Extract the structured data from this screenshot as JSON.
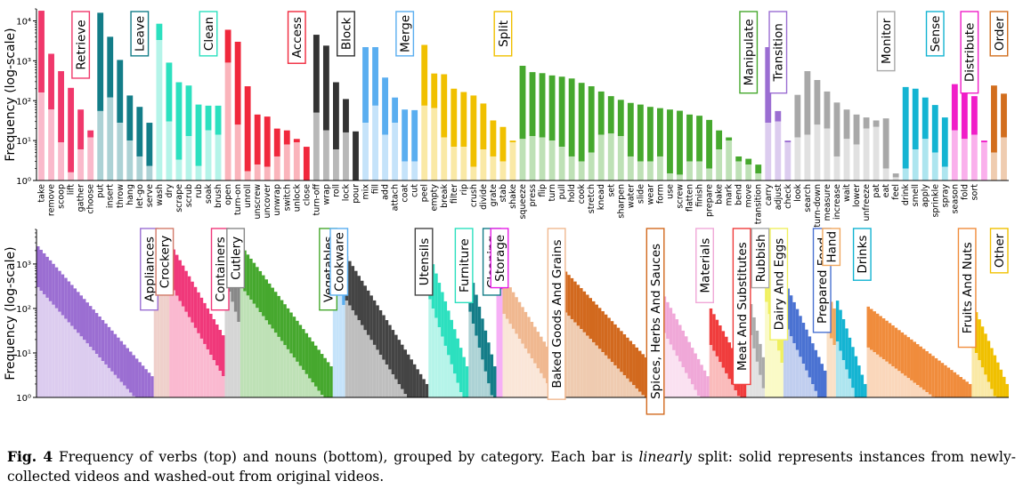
{
  "caption": {
    "label": "Fig. 4",
    "text1": "Frequency of verbs (top) and nouns (bottom), grouped by category. Each bar is",
    "emph": "linearly",
    "text2": "split: solid represents instances from newly-collected videos and washed-out from original videos."
  },
  "chart_data": [
    {
      "type": "bar",
      "stacked": true,
      "scale": "log",
      "ylabel": "Frequency (log-scale)",
      "ylim": [
        1,
        20000
      ],
      "yticks": [
        1,
        10,
        100,
        1000,
        10000
      ],
      "ytick_labels": [
        "10⁰",
        "10¹",
        "10²",
        "10³",
        "10⁴"
      ],
      "grid": false,
      "legend": "none",
      "categories": [
        {
          "name": "Retrieve",
          "color": "#f0386b",
          "verbs": [
            {
              "label": "take",
              "total": 18000,
              "original": 160
            },
            {
              "label": "remove",
              "total": 1500,
              "original": 60
            },
            {
              "label": "scoop",
              "total": 550,
              "original": 9
            },
            {
              "label": "lift",
              "total": 210,
              "original": 1.6
            },
            {
              "label": "gather",
              "total": 60,
              "original": 6
            },
            {
              "label": "choose",
              "total": 18,
              "original": 12
            }
          ]
        },
        {
          "name": "Leave",
          "color": "#137d88",
          "verbs": [
            {
              "label": "put",
              "total": 16000,
              "original": 55
            },
            {
              "label": "insert",
              "total": 4000,
              "original": 120
            },
            {
              "label": "throw",
              "total": 1050,
              "original": 28
            },
            {
              "label": "hang",
              "total": 135,
              "original": 10
            },
            {
              "label": "let-go",
              "total": 70,
              "original": 4
            },
            {
              "label": "serve",
              "total": 28,
              "original": 2.3
            }
          ]
        },
        {
          "name": "Clean",
          "color": "#2ce0bf",
          "verbs": [
            {
              "label": "wash",
              "total": 8500,
              "original": 3300
            },
            {
              "label": "dry",
              "total": 900,
              "original": 30
            },
            {
              "label": "scrape",
              "total": 290,
              "original": 3.3
            },
            {
              "label": "scrub",
              "total": 240,
              "original": 13
            },
            {
              "label": "rub",
              "total": 80,
              "original": 2.3
            },
            {
              "label": "soak",
              "total": 75,
              "original": 18
            },
            {
              "label": "brush",
              "total": 75,
              "original": 14
            }
          ]
        },
        {
          "name": "Access",
          "color": "#f0283c",
          "verbs": [
            {
              "label": "open",
              "total": 6000,
              "original": 900
            },
            {
              "label": "turn-on",
              "total": 3000,
              "original": 25
            },
            {
              "label": "unroll",
              "total": 230,
              "original": 1.7
            },
            {
              "label": "unscrew",
              "total": 45,
              "original": 2.5
            },
            {
              "label": "uncover",
              "total": 40,
              "original": 2.2
            },
            {
              "label": "unwrap",
              "total": 20,
              "original": 4
            },
            {
              "label": "switch",
              "total": 18,
              "original": 8
            },
            {
              "label": "unlock",
              "total": 11,
              "original": 9
            },
            {
              "label": "close",
              "total": 7,
              "original": 1
            }
          ]
        },
        {
          "name": "Block",
          "color": "#333333",
          "verbs": [
            {
              "label": "turn-off",
              "total": 4500,
              "original": 50
            },
            {
              "label": "wrap",
              "total": 2400,
              "original": 18
            },
            {
              "label": "roll",
              "total": 290,
              "original": 6
            },
            {
              "label": "lock",
              "total": 110,
              "original": 16
            },
            {
              "label": "pour",
              "total": 17,
              "original": 1
            }
          ]
        },
        {
          "name": "Merge",
          "color": "#5aaef0",
          "verbs": [
            {
              "label": "mix",
              "total": 2200,
              "original": 28
            },
            {
              "label": "fill",
              "total": 2200,
              "original": 75
            },
            {
              "label": "add",
              "total": 380,
              "original": 14
            },
            {
              "label": "attach",
              "total": 120,
              "original": 28
            },
            {
              "label": "coat",
              "total": 60,
              "original": 3
            },
            {
              "label": "cut",
              "total": 58,
              "original": 3
            }
          ]
        },
        {
          "name": "Split",
          "color": "#f0c000",
          "verbs": [
            {
              "label": "peel",
              "total": 2500,
              "original": 75
            },
            {
              "label": "empty",
              "total": 480,
              "original": 65
            },
            {
              "label": "break",
              "total": 460,
              "original": 12
            },
            {
              "label": "filter",
              "total": 200,
              "original": 7
            },
            {
              "label": "rip",
              "total": 165,
              "original": 7
            },
            {
              "label": "crush",
              "total": 135,
              "original": 2.2
            },
            {
              "label": "divide",
              "total": 85,
              "original": 6
            },
            {
              "label": "grate",
              "total": 32,
              "original": 4
            },
            {
              "label": "stab",
              "total": 22,
              "original": 3
            },
            {
              "label": "shake",
              "total": 10,
              "original": 9
            }
          ]
        },
        {
          "name": "Manipulate",
          "color": "#46a82e",
          "verbs": [
            {
              "label": "squeeze",
              "total": 750,
              "original": 11
            },
            {
              "label": "press",
              "total": 520,
              "original": 13
            },
            {
              "label": "flip",
              "total": 490,
              "original": 12
            },
            {
              "label": "turn",
              "total": 430,
              "original": 10
            },
            {
              "label": "pull",
              "total": 400,
              "original": 7
            },
            {
              "label": "hold",
              "total": 360,
              "original": 4
            },
            {
              "label": "cook",
              "total": 280,
              "original": 3
            },
            {
              "label": "stretch",
              "total": 230,
              "original": 5
            },
            {
              "label": "knead",
              "total": 170,
              "original": 14
            },
            {
              "label": "set",
              "total": 130,
              "original": 15
            },
            {
              "label": "sharpen",
              "total": 105,
              "original": 13
            },
            {
              "label": "water",
              "total": 88,
              "original": 4
            },
            {
              "label": "slide",
              "total": 80,
              "original": 3
            },
            {
              "label": "wear",
              "total": 70,
              "original": 3
            },
            {
              "label": "form",
              "total": 65,
              "original": 4
            },
            {
              "label": "use",
              "total": 60,
              "original": 1.5
            },
            {
              "label": "screw",
              "total": 56,
              "original": 1.4
            },
            {
              "label": "flatten",
              "total": 45,
              "original": 3
            },
            {
              "label": "finish",
              "total": 42,
              "original": 3
            },
            {
              "label": "prepare",
              "total": 33,
              "original": 2
            },
            {
              "label": "bake",
              "total": 18,
              "original": 6
            },
            {
              "label": "mark",
              "total": 12,
              "original": 10
            },
            {
              "label": "bend",
              "total": 4,
              "original": 3
            },
            {
              "label": "move",
              "total": 3.5,
              "original": 2.5
            },
            {
              "label": "transition",
              "total": 2.5,
              "original": 1.5
            }
          ]
        },
        {
          "name": "Transition",
          "color": "#9b6ed2",
          "verbs": [
            {
              "label": "carry",
              "total": 2200,
              "original": 28
            },
            {
              "label": "adjust",
              "total": 55,
              "original": 30
            },
            {
              "label": "check",
              "total": 10,
              "original": 9
            }
          ]
        },
        {
          "name": "Monitor",
          "color": "#a8a8a8",
          "verbs": [
            {
              "label": "look",
              "total": 140,
              "original": 12
            },
            {
              "label": "search",
              "total": 550,
              "original": 14
            },
            {
              "label": "turn-down",
              "total": 330,
              "original": 25
            },
            {
              "label": "measure",
              "total": 170,
              "original": 20
            },
            {
              "label": "increase",
              "total": 90,
              "original": 4
            },
            {
              "label": "wait",
              "total": 60,
              "original": 11
            },
            {
              "label": "lower",
              "total": 45,
              "original": 8
            },
            {
              "label": "unfreeze",
              "total": 38,
              "original": 20
            },
            {
              "label": "pat",
              "total": 32,
              "original": 22
            },
            {
              "label": "eat",
              "total": 36,
              "original": 2
            },
            {
              "label": "feel",
              "total": 1.5,
              "original": 1.2
            }
          ]
        },
        {
          "name": "Sense",
          "color": "#14b4d2",
          "verbs": [
            {
              "label": "drink",
              "total": 220,
              "original": 2
            },
            {
              "label": "smell",
              "total": 200,
              "original": 6
            },
            {
              "label": "apply",
              "total": 120,
              "original": 11
            },
            {
              "label": "sprinkle",
              "total": 78,
              "original": 5
            },
            {
              "label": "spray",
              "total": 38,
              "original": 2.2
            }
          ]
        },
        {
          "name": "Distribute",
          "color": "#f01ec8",
          "verbs": [
            {
              "label": "season",
              "total": 260,
              "original": 18
            },
            {
              "label": "fold",
              "total": 160,
              "original": 11
            },
            {
              "label": "sort",
              "total": 130,
              "original": 14
            },
            {
              "label": "",
              "total": 10,
              "original": 9
            }
          ]
        },
        {
          "name": "Order",
          "color": "#d26e1e",
          "verbs": [
            {
              "label": "",
              "total": 240,
              "original": 5
            },
            {
              "label": "",
              "total": 150,
              "original": 12
            }
          ]
        }
      ]
    },
    {
      "type": "bar",
      "stacked": true,
      "scale": "log",
      "ylabel": "Frequency (log-scale)",
      "ylim": [
        1,
        6000
      ],
      "yticks": [
        1,
        10,
        100,
        1000
      ],
      "ytick_labels": [
        "10⁰",
        "10¹",
        "10²",
        "10³"
      ],
      "grid": false,
      "legend": "none",
      "categories": [
        {
          "name": "Appliances",
          "color": "#9b6ed2",
          "count": 38,
          "start": 2500,
          "end": 3,
          "orig_ratio": 0.12
        },
        {
          "name": "Crockery",
          "color": "#d27a6a",
          "count": 5,
          "start": 3000,
          "end": 1500,
          "orig_ratio": 0.15
        },
        {
          "name": "Containers",
          "color": "#f0387a",
          "count": 18,
          "start": 2800,
          "end": 25,
          "orig_ratio": 0.12
        },
        {
          "name": "Cutlery",
          "color": "#888888",
          "count": 5,
          "start": 4000,
          "end": 500,
          "orig_ratio": 0.1
        },
        {
          "name": "Vegetables",
          "color": "#46a82e",
          "count": 30,
          "start": 2500,
          "end": 5,
          "orig_ratio": 0.12
        },
        {
          "name": "Cookware",
          "color": "#5aaef0",
          "count": 4,
          "start": 3000,
          "end": 600,
          "orig_ratio": 0.2
        },
        {
          "name": "Utensils",
          "color": "#444444",
          "count": 27,
          "start": 1500,
          "end": 2,
          "orig_ratio": 0.1
        },
        {
          "name": "Furniture",
          "color": "#2ce0bf",
          "count": 13,
          "start": 1600,
          "end": 5,
          "orig_ratio": 0.1
        },
        {
          "name": "Cleaning",
          "color": "#137d88",
          "count": 9,
          "start": 700,
          "end": 5,
          "orig_ratio": 0.12
        },
        {
          "name": "Storage",
          "color": "#e61ee6",
          "count": 2,
          "start": 1700,
          "end": 900,
          "orig_ratio": 0.3
        },
        {
          "name": "Baked Goods And Grains",
          "color": "#f0b890",
          "count": 19,
          "start": 500,
          "end": 5,
          "orig_ratio": 0.15
        },
        {
          "name": "Spices, Herbs And Sauces",
          "color": "#d2691e",
          "count": 32,
          "start": 800,
          "end": 4,
          "orig_ratio": 0.12
        },
        {
          "name": "Materials",
          "color": "#f0a8d8",
          "count": 16,
          "start": 250,
          "end": 3,
          "orig_ratio": 0.15
        },
        {
          "name": "Meat And Substitutes",
          "color": "#f03c3c",
          "count": 12,
          "start": 100,
          "end": 4,
          "orig_ratio": 0.15
        },
        {
          "name": "Rubbish",
          "color": "#aaaaaa",
          "count": 6,
          "start": 250,
          "end": 8,
          "orig_ratio": 0.2
        },
        {
          "name": "Dairy And Eggs",
          "color": "#f0f060",
          "count": 6,
          "start": 700,
          "end": 30,
          "orig_ratio": 0.2
        },
        {
          "name": "Prepared Food",
          "color": "#4a72d2",
          "count": 14,
          "start": 400,
          "end": 4,
          "orig_ratio": 0.12
        },
        {
          "name": "Hand",
          "color": "#f0a860",
          "count": 3,
          "start": 200,
          "end": 100,
          "orig_ratio": 0.15
        },
        {
          "name": "Drinks",
          "color": "#14b4d2",
          "count": 10,
          "start": 150,
          "end": 2,
          "orig_ratio": 0.12
        },
        {
          "name": "Fruits And Nuts",
          "color": "#f08c3c",
          "count": 34,
          "start": 110,
          "end": 2,
          "orig_ratio": 0.12
        },
        {
          "name": "Other",
          "color": "#f0c000",
          "count": 12,
          "start": 120,
          "end": 2,
          "orig_ratio": 0.12
        }
      ]
    }
  ]
}
